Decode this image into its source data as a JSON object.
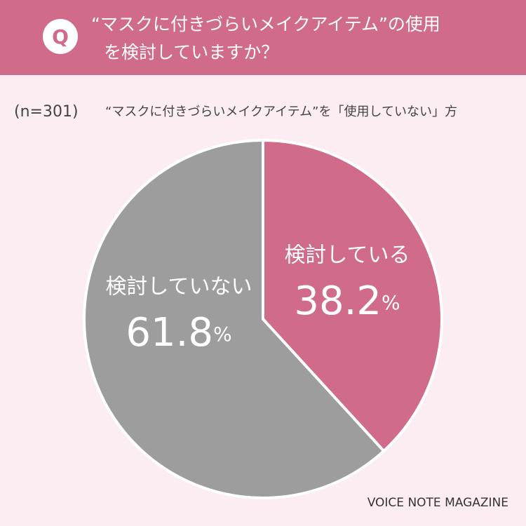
{
  "badge": "Q",
  "chart_data": {
    "type": "pie",
    "title": [
      "“マスクに付きづらいメイクアイテム”の使用",
      "を検討していますか？"
    ],
    "sample": "(n=301)",
    "subtitle": "“マスクに付きづらいメイクアイテム”を「使用していない」方",
    "categories": [
      "検討している",
      "検討していない"
    ],
    "values": [
      38.2,
      61.8
    ],
    "value_labels": [
      "38.2%",
      "61.8%"
    ],
    "colors": [
      "#d06b8a",
      "#9d9d9d"
    ]
  },
  "source": "VOICE NOTE MAGAZINE"
}
